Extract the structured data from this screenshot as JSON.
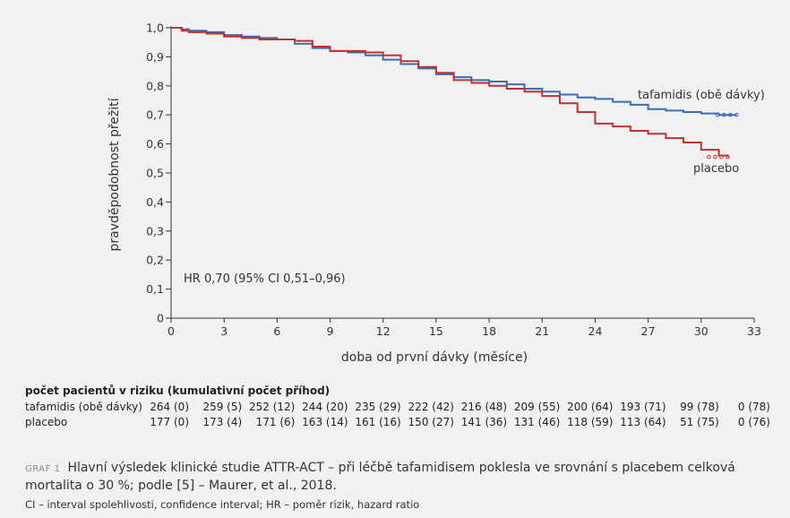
{
  "chart_data": {
    "type": "line",
    "xlabel": "doba od první dávky (měsíce)",
    "ylabel": "pravděpodobnost přežití",
    "xlim": [
      0,
      33
    ],
    "ylim": [
      0,
      1.0
    ],
    "x_ticks": [
      "0",
      "3",
      "6",
      "9",
      "12",
      "15",
      "18",
      "21",
      "24",
      "27",
      "30",
      "33"
    ],
    "y_ticks": [
      "0",
      "0,1",
      "0,2",
      "0,3",
      "0,4",
      "0,5",
      "0,6",
      "0,7",
      "0,8",
      "0,9",
      "1,0"
    ],
    "annotation": "HR 0,70 (95% CI 0,51–0,96)",
    "series": [
      {
        "name": "tafamidis (obě dávky)",
        "color": "#3a6db5",
        "x": [
          0,
          0.6,
          1.0,
          2.0,
          3.0,
          4.0,
          5.0,
          6.0,
          7.0,
          8.0,
          9.0,
          10.0,
          11.0,
          12.0,
          13.0,
          14.0,
          15.0,
          16.0,
          17.0,
          18.0,
          19.0,
          20.0,
          21.0,
          22.0,
          23.0,
          24.0,
          25.0,
          26.0,
          27.0,
          28.0,
          29.0,
          30.0,
          31.0,
          32.0
        ],
        "y": [
          1.0,
          0.995,
          0.99,
          0.985,
          0.975,
          0.97,
          0.965,
          0.96,
          0.945,
          0.93,
          0.92,
          0.915,
          0.905,
          0.89,
          0.875,
          0.86,
          0.84,
          0.83,
          0.82,
          0.815,
          0.805,
          0.79,
          0.78,
          0.77,
          0.76,
          0.755,
          0.745,
          0.735,
          0.72,
          0.715,
          0.71,
          0.705,
          0.7,
          0.7
        ]
      },
      {
        "name": "placebo",
        "color": "#c0322f",
        "x": [
          0,
          0.6,
          1.0,
          2.0,
          3.0,
          4.0,
          5.0,
          6.0,
          7.0,
          8.0,
          9.0,
          10.0,
          11.0,
          12.0,
          13.0,
          14.0,
          15.0,
          16.0,
          17.0,
          18.0,
          19.0,
          20.0,
          21.0,
          22.0,
          23.0,
          24.0,
          25.0,
          26.0,
          27.0,
          28.0,
          29.0,
          30.0,
          31.0,
          31.5
        ],
        "y": [
          1.0,
          0.99,
          0.985,
          0.98,
          0.97,
          0.965,
          0.96,
          0.96,
          0.955,
          0.935,
          0.92,
          0.92,
          0.915,
          0.905,
          0.885,
          0.865,
          0.845,
          0.82,
          0.81,
          0.8,
          0.79,
          0.78,
          0.765,
          0.74,
          0.71,
          0.67,
          0.66,
          0.645,
          0.635,
          0.62,
          0.605,
          0.58,
          0.56,
          0.555
        ]
      }
    ],
    "series_labels": [
      "tafamidis (obě dávky)",
      "placebo"
    ]
  },
  "risk_table": {
    "title": "počet pacientů v riziku (kumulativní počet příhod)",
    "rows": [
      {
        "name": "tafamidis (obě dávky)",
        "values": [
          "264 (0)",
          "259 (5)",
          "252 (12)",
          "244 (20)",
          "235 (29)",
          "222 (42)",
          "216 (48)",
          "209 (55)",
          "200 (64)",
          "193 (71)",
          "99 (78)",
          "0 (78)"
        ]
      },
      {
        "name": "placebo",
        "values": [
          "177 (0)",
          "173 (4)",
          "171 (6)",
          "163 (14)",
          "161 (16)",
          "150 (27)",
          "141 (36)",
          "131 (46)",
          "118 (59)",
          "113 (64)",
          "51 (75)",
          "0 (76)"
        ]
      }
    ]
  },
  "caption": {
    "label": "GRAF 1",
    "text": "Hlavní výsledek klinické studie ATTR-ACT – při léčbě tafamidisem poklesla ve srovnání s placebem celková mortalita o 30 %; podle [5] – Maurer, et al., 2018.",
    "footnote": "CI – interval spolehlivosti, confidence interval; HR – poměr rizik, hazard ratio"
  }
}
